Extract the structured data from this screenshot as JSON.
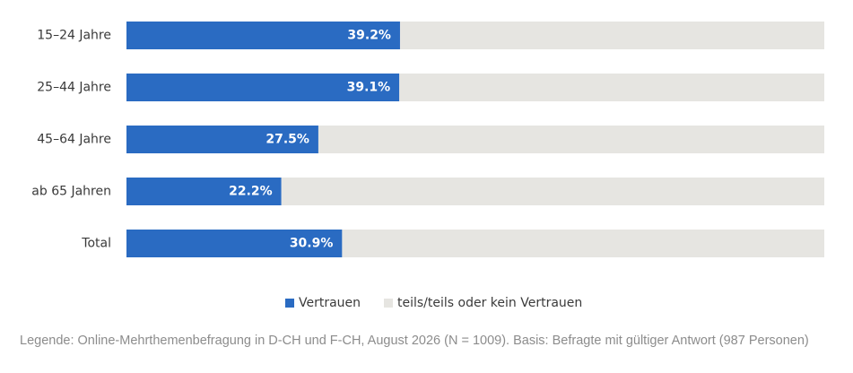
{
  "chart_data": {
    "type": "bar",
    "orientation": "horizontal",
    "stacked_percent": true,
    "categories": [
      "15–24 Jahre",
      "25–44 Jahre",
      "45–64 Jahre",
      "ab 65 Jahren",
      "Total"
    ],
    "series": [
      {
        "name": "Vertrauen",
        "color": "#2a6bc2",
        "values": [
          39.2,
          39.1,
          27.5,
          22.2,
          30.9
        ],
        "data_labels": [
          "39.2%",
          "39.1%",
          "27.5%",
          "22.2%",
          "30.9%"
        ]
      },
      {
        "name": "teils/teils oder kein Vertrauen",
        "color": "#e6e5e1",
        "values": [
          60.8,
          60.9,
          72.5,
          77.8,
          69.1
        ]
      }
    ],
    "xlim": [
      0,
      100
    ],
    "grid": false,
    "legend": "bottom-center"
  },
  "caption": "Legende: Online-Mehrthemenbefragung in D-CH und F-CH, August 2026 (N = 1009). Basis: Befragte mit gültiger Antwort (987 Personen)"
}
